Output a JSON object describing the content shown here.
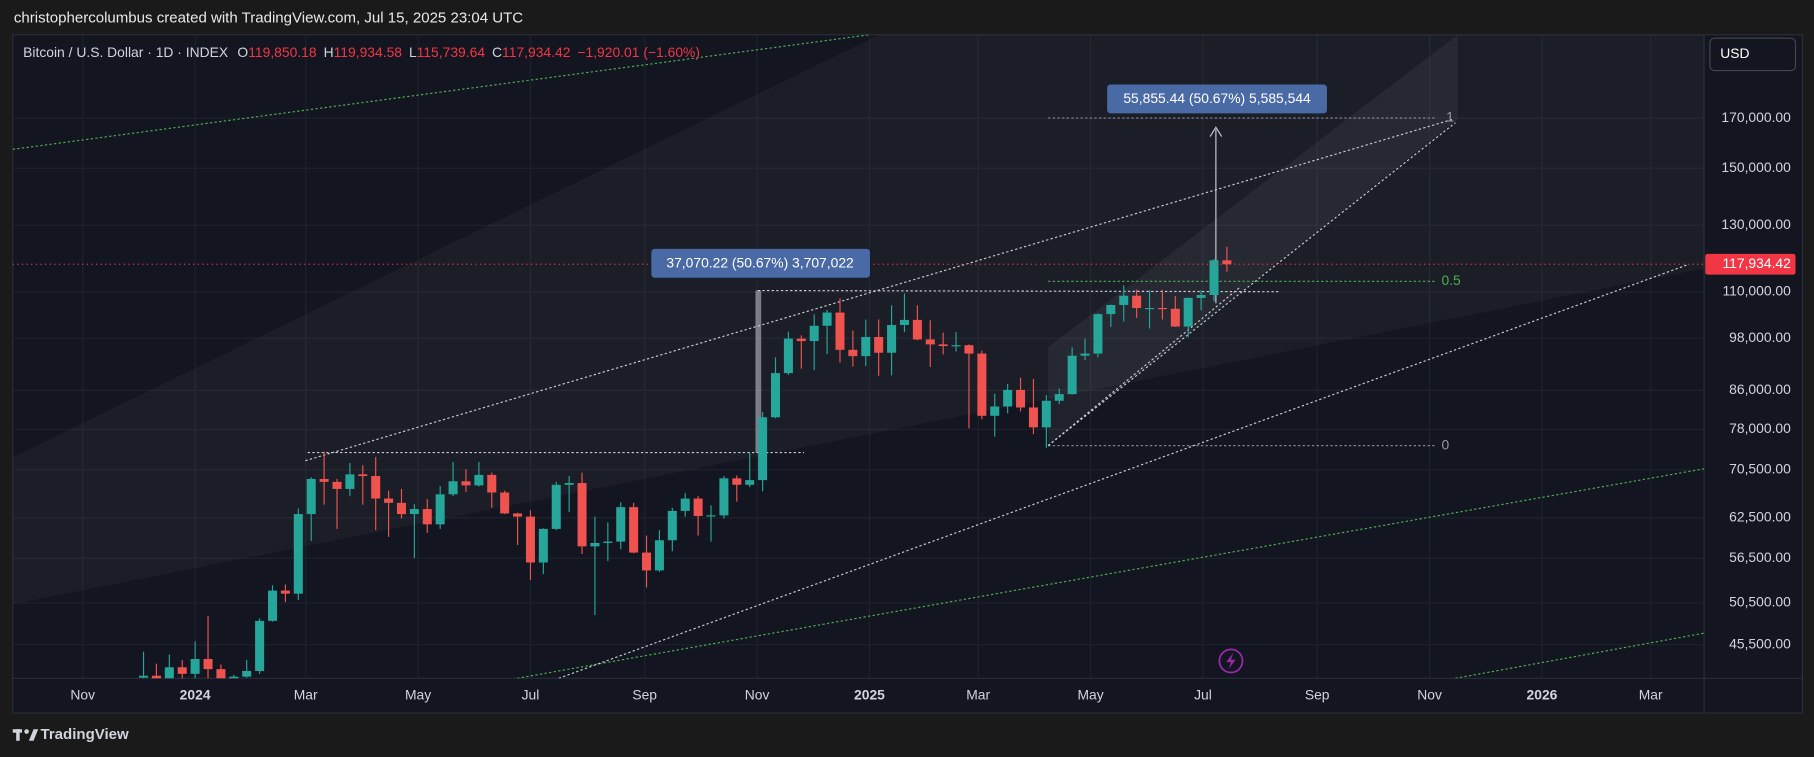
{
  "header": {
    "caption": "christophercolumbus created with TradingView.com, Jul 15, 2025 23:04 UTC"
  },
  "legend": {
    "symbol": "Bitcoin / U.S. Dollar · 1D · INDEX",
    "ohlc": [
      {
        "label": "O",
        "value": "119,850.18"
      },
      {
        "label": "H",
        "value": "119,934.58"
      },
      {
        "label": "L",
        "value": "115,739.64"
      },
      {
        "label": "C",
        "value": "117,934.42"
      }
    ],
    "change": "−1,920.01 (−1.60%)"
  },
  "currency": "USD",
  "annotations": {
    "measure_1": "37,070.22 (50.67%) 3,707,022",
    "measure_2": "55,855.44 (50.67%) 5,585,544",
    "fib_1": "1",
    "fib_05": "0.5",
    "fib_0": "0"
  },
  "footer": "TradingView",
  "chart_data": {
    "type": "candlestick",
    "log_scale": true,
    "grid": true,
    "up_color": "#26a69a",
    "down_color": "#ef5350",
    "xlim": [
      "2023-09-24",
      "2026-03-30"
    ],
    "ylim": [
      41830,
      209500
    ],
    "yticks": [
      {
        "value": 170000,
        "label": "170,000.00"
      },
      {
        "value": 150000,
        "label": "150,000.00"
      },
      {
        "value": 130000,
        "label": "130,000.00"
      },
      {
        "value": 110000,
        "label": "110,000.00"
      },
      {
        "value": 98000,
        "label": "98,000.00"
      },
      {
        "value": 86000,
        "label": "86,000.00"
      },
      {
        "value": 78000,
        "label": "78,000.00"
      },
      {
        "value": 70500,
        "label": "70,500.00"
      },
      {
        "value": 62500,
        "label": "62,500.00"
      },
      {
        "value": 56500,
        "label": "56,500.00"
      },
      {
        "value": 50500,
        "label": "50,500.00"
      },
      {
        "value": 45500,
        "label": "45,500.00"
      }
    ],
    "xticks": [
      {
        "value": "2023-11-01",
        "label": "Nov"
      },
      {
        "value": "2024-01-01",
        "label": "2024"
      },
      {
        "value": "2024-03-01",
        "label": "Mar"
      },
      {
        "value": "2024-05-01",
        "label": "May"
      },
      {
        "value": "2024-07-01",
        "label": "Jul"
      },
      {
        "value": "2024-09-01",
        "label": "Sep"
      },
      {
        "value": "2024-11-01",
        "label": "Nov"
      },
      {
        "value": "2025-01-01",
        "label": "2025"
      },
      {
        "value": "2025-03-01",
        "label": "Mar"
      },
      {
        "value": "2025-05-01",
        "label": "May"
      },
      {
        "value": "2025-07-01",
        "label": "Jul"
      },
      {
        "value": "2025-09-01",
        "label": "Sep"
      },
      {
        "value": "2025-11-01",
        "label": "Nov"
      },
      {
        "value": "2026-01-01",
        "label": "2026"
      },
      {
        "value": "2026-03-01",
        "label": "Mar"
      }
    ],
    "last_price": {
      "value": 117934.42,
      "label": "117,934.42",
      "color": "#f23645"
    },
    "x": [
      "2023-12-04",
      "2023-12-11",
      "2023-12-18",
      "2023-12-25",
      "2024-01-01",
      "2024-01-08",
      "2024-01-15",
      "2024-01-22",
      "2024-01-29",
      "2024-02-05",
      "2024-02-12",
      "2024-02-19",
      "2024-02-26",
      "2024-03-04",
      "2024-03-11",
      "2024-03-18",
      "2024-03-25",
      "2024-04-01",
      "2024-04-08",
      "2024-04-15",
      "2024-04-22",
      "2024-04-29",
      "2024-05-06",
      "2024-05-13",
      "2024-05-20",
      "2024-05-27",
      "2024-06-03",
      "2024-06-10",
      "2024-06-17",
      "2024-06-24",
      "2024-07-01",
      "2024-07-08",
      "2024-07-15",
      "2024-07-22",
      "2024-07-29",
      "2024-08-05",
      "2024-08-12",
      "2024-08-19",
      "2024-08-26",
      "2024-09-02",
      "2024-09-09",
      "2024-09-16",
      "2024-09-23",
      "2024-09-30",
      "2024-10-07",
      "2024-10-14",
      "2024-10-21",
      "2024-10-28",
      "2024-11-04",
      "2024-11-11",
      "2024-11-18",
      "2024-11-25",
      "2024-12-02",
      "2024-12-09",
      "2024-12-16",
      "2024-12-23",
      "2024-12-30",
      "2025-01-06",
      "2025-01-13",
      "2025-01-20",
      "2025-01-27",
      "2025-02-03",
      "2025-02-10",
      "2025-02-17",
      "2025-02-24",
      "2025-03-03",
      "2025-03-10",
      "2025-03-17",
      "2025-03-24",
      "2025-03-31",
      "2025-04-07",
      "2025-04-14",
      "2025-04-21",
      "2025-04-28",
      "2025-05-05",
      "2025-05-12",
      "2025-05-19",
      "2025-05-26",
      "2025-06-02",
      "2025-06-09",
      "2025-06-16",
      "2025-06-23",
      "2025-06-30",
      "2025-07-07",
      "2025-07-14"
    ],
    "open": [
      41900,
      42100,
      41400,
      43000,
      42300,
      43900,
      42800,
      41600,
      42000,
      42600,
      48300,
      52100,
      51700,
      63100,
      68900,
      68400,
      67200,
      69700,
      69400,
      65600,
      64900,
      63100,
      63900,
      61500,
      66300,
      68500,
      67800,
      69600,
      66600,
      63200,
      62700,
      55900,
      60800,
      67900,
      68200,
      58200,
      58700,
      58900,
      64200,
      57300,
      54800,
      59100,
      63600,
      65600,
      62800,
      62900,
      69000,
      67900,
      68700,
      80400,
      89800,
      97900,
      97300,
      101100,
      104500,
      95200,
      93700,
      98300,
      94500,
      101300,
      102600,
      97700,
      96500,
      96100,
      96300,
      94300,
      80700,
      82600,
      86100,
      82400,
      78400,
      83800,
      85200,
      93800,
      94300,
      104100,
      106500,
      109000,
      105700,
      105700,
      105500,
      100900,
      108400,
      109200,
      119100
    ],
    "high": [
      44700,
      43400,
      44400,
      43800,
      45900,
      48900,
      43300,
      42200,
      43800,
      48600,
      52800,
      52900,
      64000,
      69200,
      73800,
      68900,
      71700,
      71300,
      72800,
      66900,
      67200,
      64700,
      65500,
      67700,
      71900,
      70600,
      71900,
      70000,
      66900,
      63300,
      63700,
      60900,
      68400,
      69400,
      70000,
      62700,
      61800,
      65000,
      64900,
      59800,
      60600,
      64100,
      66500,
      66000,
      64500,
      69400,
      69500,
      73600,
      81500,
      93400,
      99600,
      98700,
      104000,
      105200,
      108300,
      99900,
      102700,
      102700,
      106400,
      109600,
      106400,
      102500,
      99400,
      99500,
      96500,
      95000,
      85300,
      87400,
      88800,
      88500,
      85000,
      86400,
      95800,
      97900,
      104300,
      106600,
      111900,
      110700,
      110500,
      110600,
      108900,
      108500,
      110500,
      119500,
      123200
    ],
    "low": [
      40200,
      40500,
      40600,
      41500,
      40800,
      41600,
      40600,
      38500,
      41900,
      42300,
      48200,
      50600,
      50900,
      59000,
      64600,
      60800,
      66000,
      64600,
      60600,
      59600,
      62400,
      56500,
      60200,
      60800,
      66000,
      66700,
      67600,
      64100,
      63100,
      58400,
      53500,
      54300,
      60600,
      63400,
      57100,
      49000,
      56100,
      57800,
      57200,
      52500,
      54600,
      57500,
      62700,
      59800,
      58900,
      62400,
      65100,
      67500,
      66800,
      80200,
      89400,
      90800,
      90500,
      94200,
      92200,
      91300,
      91400,
      89200,
      89300,
      99500,
      97500,
      91200,
      94100,
      94800,
      78200,
      80000,
      76600,
      81200,
      81600,
      77100,
      74500,
      83100,
      85100,
      92800,
      93400,
      100800,
      102200,
      103100,
      100400,
      102700,
      100800,
      98200,
      105100,
      107500,
      115739.64
    ],
    "close": [
      42100,
      41400,
      43000,
      42300,
      43900,
      42800,
      41600,
      42000,
      42600,
      48300,
      52100,
      51700,
      63100,
      68900,
      68400,
      67200,
      69700,
      69400,
      65600,
      64900,
      63100,
      63900,
      61500,
      66300,
      68500,
      67800,
      69600,
      66600,
      63200,
      62700,
      55900,
      60800,
      67900,
      68200,
      58200,
      58700,
      58900,
      64200,
      57300,
      54800,
      59100,
      63600,
      65600,
      62800,
      62900,
      69000,
      67900,
      68700,
      80400,
      89800,
      97900,
      97300,
      101100,
      104500,
      95200,
      93700,
      98300,
      94500,
      101300,
      102600,
      97700,
      96500,
      96100,
      96300,
      94300,
      80700,
      82600,
      86100,
      82400,
      78400,
      83800,
      85200,
      93800,
      94300,
      104100,
      106500,
      109000,
      105700,
      105700,
      105500,
      100900,
      108400,
      109200,
      119100,
      117934.42
    ]
  }
}
